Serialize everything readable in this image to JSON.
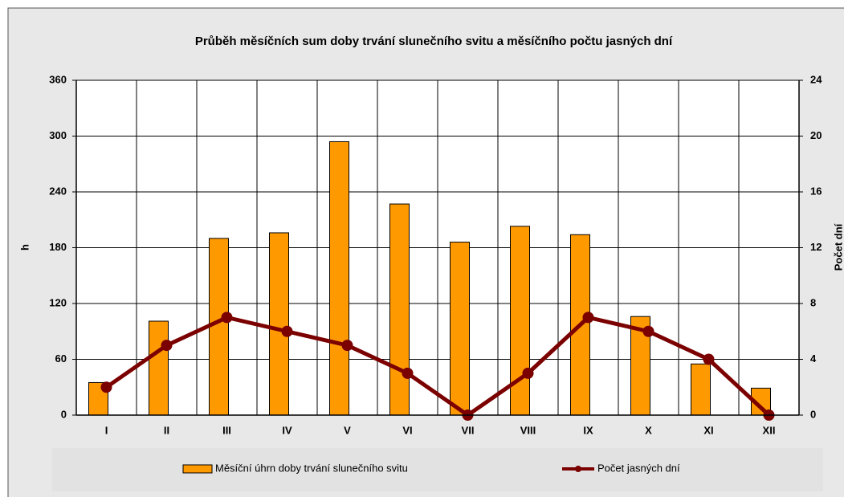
{
  "chart_data": {
    "type": "bar",
    "title": "Průběh měsíčních sum doby trvání slunečního svitu a měsíčního počtu jasných dní",
    "y_label": "h",
    "y2_label": "Počet dní",
    "categories": [
      "I",
      "II",
      "III",
      "IV",
      "V",
      "VI",
      "VII",
      "VIII",
      "IX",
      "X",
      "XI",
      "XII"
    ],
    "series": [
      {
        "name": "Měsíční úhrn doby trvání slunečního svitu",
        "type": "bar",
        "color": "#ff9900",
        "values": [
          35,
          101,
          190,
          196,
          294,
          227,
          186,
          203,
          194,
          106,
          55,
          29
        ]
      },
      {
        "name": "Počet jasných dní",
        "type": "line",
        "axis": "y2",
        "color": "#7b0000",
        "values": [
          2,
          5,
          7,
          6,
          5,
          3,
          0,
          3,
          7,
          6,
          4,
          0
        ]
      }
    ],
    "ylim": [
      0,
      360
    ],
    "yticks": [
      0,
      60,
      120,
      180,
      240,
      300,
      360
    ],
    "y2lim": [
      0,
      24
    ],
    "y2ticks": [
      0,
      4,
      8,
      12,
      16,
      20,
      24
    ],
    "grid": true
  }
}
